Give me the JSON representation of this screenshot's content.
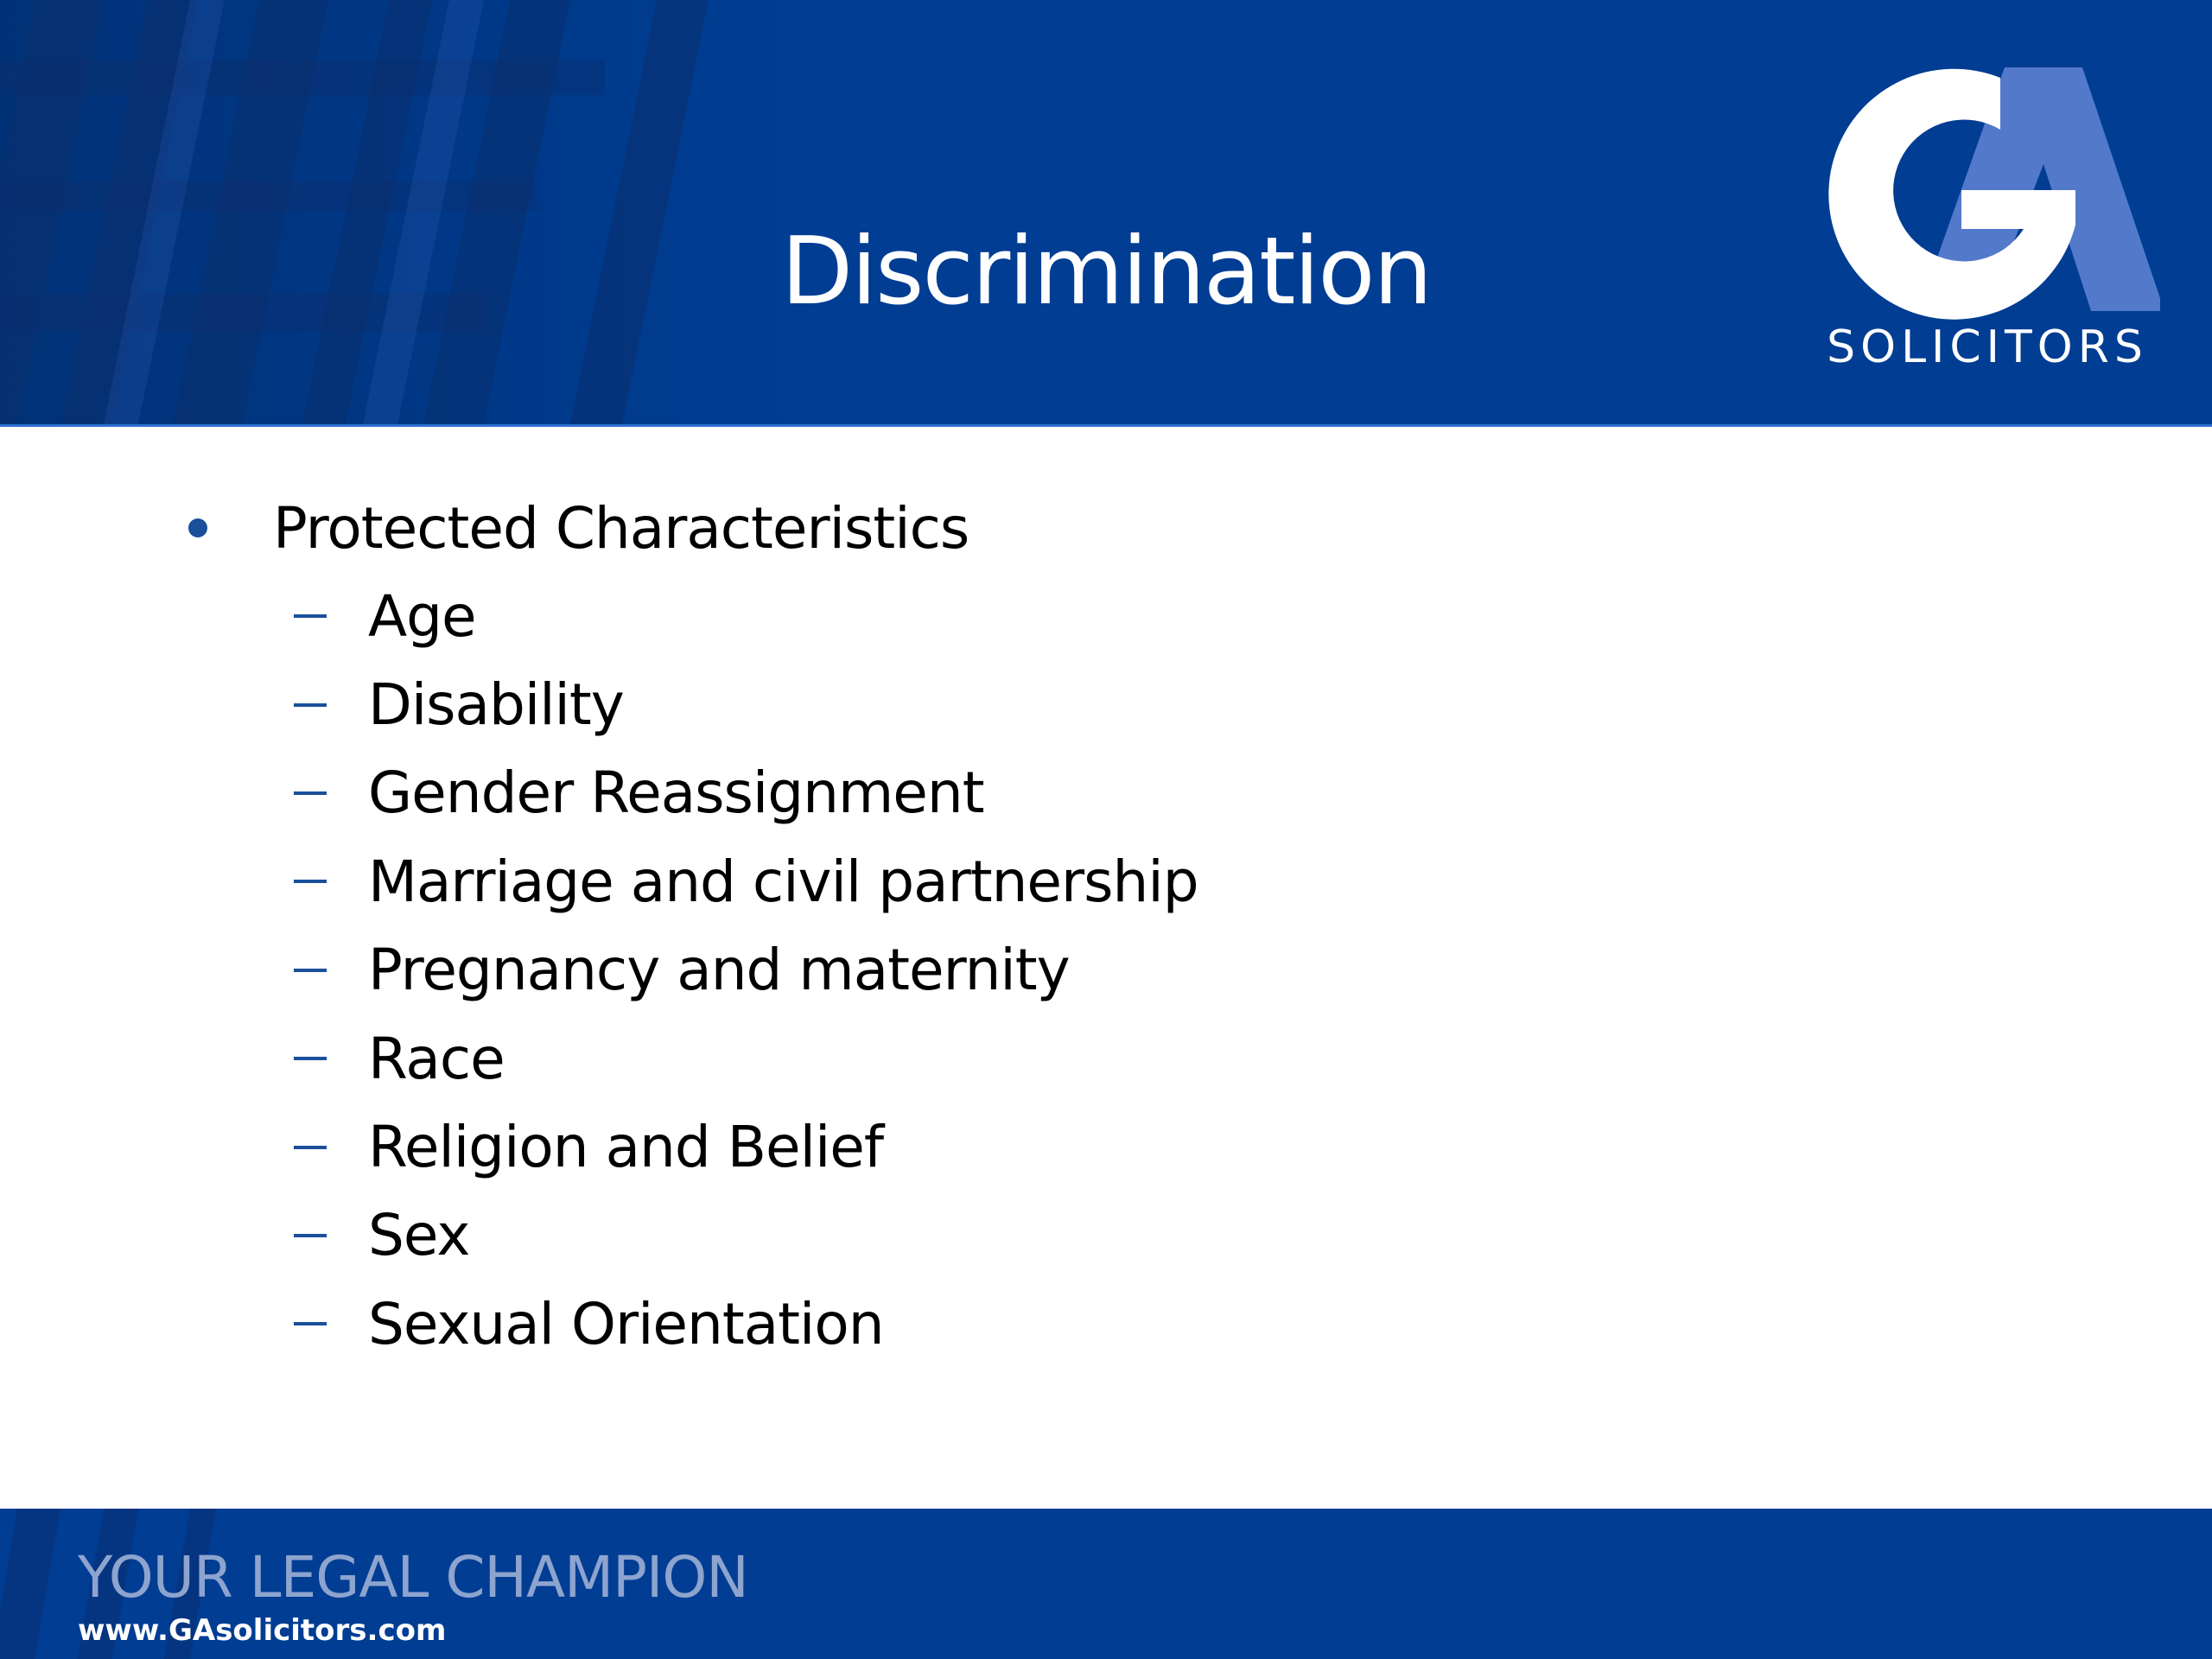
{
  "slide": {
    "title": "Discrimination",
    "logo": {
      "mark_letters": "GA",
      "wordmark": "SOLICITORS"
    },
    "main_bullet": "Protected Characteristics",
    "sub_bullets": [
      "Age",
      "Disability",
      "Gender Reassignment",
      "Marriage and civil partnership",
      "Pregnancy and maternity",
      "Race",
      "Religion and Belief",
      "Sex",
      "Sexual Orientation"
    ],
    "footer": {
      "tagline": "YOUR LEGAL CHAMPION",
      "website": "www.GAsolicitors.com"
    }
  },
  "colors": {
    "band_blue": "#003d93",
    "accent_blue": "#1a4f9a",
    "logo_light_blue": "#5b7fd0",
    "tagline_grey_blue": "#8da4cf",
    "text": "#000000",
    "background": "#ffffff"
  },
  "icons": {
    "bullet": "filled-circle-bullet",
    "sub_bullet": "en-dash",
    "logo": "ga-solicitors-logo"
  }
}
